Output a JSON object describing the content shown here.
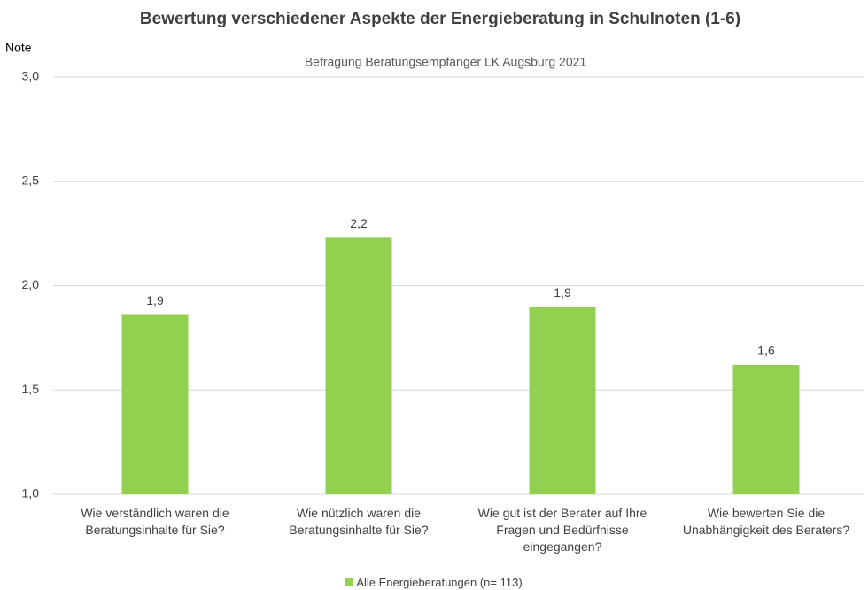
{
  "chart_data": {
    "type": "bar",
    "title": "Bewertung verschiedener Aspekte der Energieberatung in Schulnoten (1-6)",
    "subtitle": "Befragung Beratungsempfänger LK Augsburg 2021",
    "y_label": "Note",
    "categories": [
      "Wie verständlich waren die Beratungsinhalte für Sie?",
      "Wie nützlich waren die Beratungsinhalte für Sie?",
      "Wie gut ist der Berater auf Ihre Fragen und Bedürfnisse eingegangen?",
      "Wie bewerten Sie die Unabhängigkeit des Beraters?"
    ],
    "series": [
      {
        "name": "Alle Energieberatungen (n= 113)",
        "color": "#92d050",
        "values": [
          1.86,
          2.23,
          1.9,
          1.62
        ],
        "value_labels": [
          "1,9",
          "2,2",
          "1,9",
          "1,6"
        ]
      }
    ],
    "ylim": [
      1,
      3
    ],
    "yticks": [
      {
        "value": 1,
        "label": "1,0"
      },
      {
        "value": 1.5,
        "label": "1,5"
      },
      {
        "value": 2,
        "label": "2,0"
      },
      {
        "value": 2.5,
        "label": "2,5"
      },
      {
        "value": 3,
        "label": "3,0"
      }
    ],
    "grid": true
  }
}
